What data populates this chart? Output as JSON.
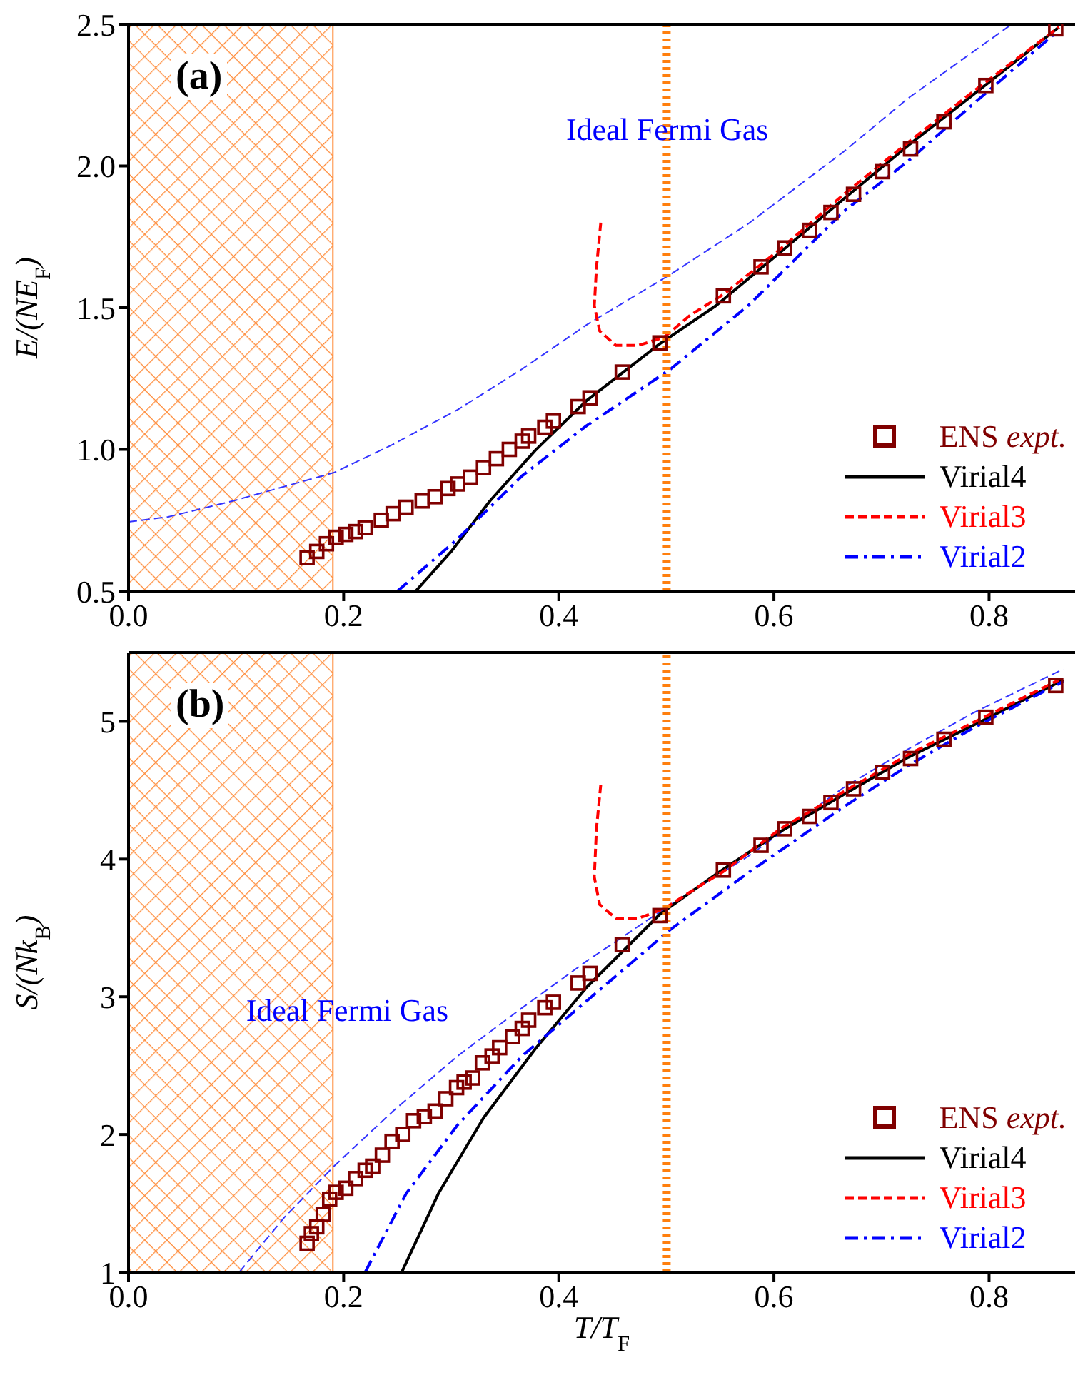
{
  "chart_data": [
    {
      "type": "line",
      "title": "(a)",
      "ylabel": "E/(NE$_{F}$)",
      "xlim": [
        0,
        0.88
      ],
      "ylim": [
        0.5,
        2.5
      ],
      "xticks": [
        {
          "value": 0,
          "label": "0.0"
        },
        {
          "value": 0.2,
          "label": "0.2"
        },
        {
          "value": 0.4,
          "label": "0.4"
        },
        {
          "value": 0.6,
          "label": "0.6"
        },
        {
          "value": 0.8,
          "label": "0.8"
        }
      ],
      "yticks": [
        {
          "value": 0.5,
          "label": "0.5"
        },
        {
          "value": 1,
          "label": "1.0"
        },
        {
          "value": 1.5,
          "label": "1.5"
        },
        {
          "value": 2,
          "label": "2.0"
        },
        {
          "value": 2.5,
          "label": "2.5"
        }
      ],
      "grid": false,
      "legend": "bottom right",
      "bands": [
        {
          "axis": "x",
          "from": 0,
          "to": 0.19,
          "color": "#ff8c3a"
        }
      ],
      "ref_lines": [
        {
          "axis": "x",
          "value": 0.5,
          "color": "#ff7f0e",
          "line_style": "dotted"
        }
      ],
      "annotations": [
        "Ideal Fermi Gas"
      ],
      "series": [
        {
          "type": "line",
          "color": "#3333ff",
          "line_style": "dashed",
          "marker": "none",
          "x": [
            0,
            0.037,
            0.097,
            0.191,
            0.246,
            0.306,
            0.366,
            0.426,
            0.504,
            0.576,
            0.665,
            0.725,
            0.821
          ],
          "values": [
            0.744,
            0.762,
            0.818,
            0.918,
            1.018,
            1.14,
            1.284,
            1.44,
            1.618,
            1.796,
            2.051,
            2.24,
            2.5
          ]
        },
        {
          "type": "scatter",
          "name": "ENS expt.",
          "color": "#800000",
          "marker": "square",
          "x": [
            0.166,
            0.175,
            0.184,
            0.193,
            0.202,
            0.211,
            0.22,
            0.235,
            0.246,
            0.258,
            0.273,
            0.285,
            0.297,
            0.306,
            0.318,
            0.33,
            0.342,
            0.354,
            0.366,
            0.372,
            0.387,
            0.395,
            0.418,
            0.429,
            0.459,
            0.494,
            0.553,
            0.588,
            0.61,
            0.633,
            0.653,
            0.674,
            0.701,
            0.727,
            0.758,
            0.797,
            0.862
          ],
          "values": [
            0.618,
            0.64,
            0.667,
            0.69,
            0.7,
            0.71,
            0.724,
            0.75,
            0.773,
            0.796,
            0.818,
            0.833,
            0.862,
            0.878,
            0.902,
            0.936,
            0.967,
            1.0,
            1.029,
            1.047,
            1.078,
            1.1,
            1.151,
            1.182,
            1.273,
            1.376,
            1.542,
            1.644,
            1.711,
            1.773,
            1.836,
            1.9,
            1.98,
            2.06,
            2.156,
            2.284,
            2.484
          ]
        },
        {
          "type": "line",
          "name": "Virial4",
          "color": "#000000",
          "line_style": "solid",
          "marker": "none",
          "x": [
            0.267,
            0.3,
            0.336,
            0.378,
            0.426,
            0.494,
            0.546,
            0.606,
            0.665,
            0.725,
            0.785,
            0.865
          ],
          "values": [
            0.5,
            0.64,
            0.818,
            0.996,
            1.173,
            1.373,
            1.507,
            1.696,
            1.884,
            2.073,
            2.251,
            2.49
          ]
        },
        {
          "type": "line",
          "name": "Virial3",
          "color": "#ff0000",
          "line_style": "dashed",
          "marker": "none",
          "x": [
            0.439,
            0.435,
            0.433,
            0.438,
            0.453,
            0.474,
            0.498,
            0.522,
            0.553,
            0.606,
            0.665,
            0.725,
            0.785,
            0.865
          ],
          "values": [
            1.8,
            1.64,
            1.507,
            1.418,
            1.367,
            1.367,
            1.396,
            1.473,
            1.547,
            1.707,
            1.9,
            2.084,
            2.262,
            2.49
          ]
        },
        {
          "type": "line",
          "name": "Virial2",
          "color": "#0000ff",
          "line_style": "dashdot",
          "marker": "none",
          "x": [
            0.25,
            0.306,
            0.366,
            0.426,
            0.504,
            0.576,
            0.665,
            0.725,
            0.785,
            0.863
          ],
          "values": [
            0.5,
            0.684,
            0.907,
            1.084,
            1.284,
            1.507,
            1.84,
            2.018,
            2.218,
            2.473
          ]
        }
      ]
    },
    {
      "type": "line",
      "title": "(b)",
      "xlabel": "T/T$_{F}$",
      "ylabel": "S/(Nk$_{B}$)",
      "xlim": [
        0,
        0.88
      ],
      "ylim": [
        1,
        5.5
      ],
      "xticks": [
        {
          "value": 0,
          "label": "0.0"
        },
        {
          "value": 0.2,
          "label": "0.2"
        },
        {
          "value": 0.4,
          "label": "0.4"
        },
        {
          "value": 0.6,
          "label": "0.6"
        },
        {
          "value": 0.8,
          "label": "0.8"
        }
      ],
      "yticks": [
        1,
        2,
        3,
        4,
        5
      ],
      "grid": false,
      "legend": "bottom right",
      "bands": [
        {
          "axis": "x",
          "from": 0,
          "to": 0.19,
          "color": "#ff8c3a"
        }
      ],
      "ref_lines": [
        {
          "axis": "x",
          "value": 0.5,
          "color": "#ff7f0e",
          "line_style": "dotted"
        }
      ],
      "annotations": [
        "Ideal Fermi Gas"
      ],
      "series": [
        {
          "type": "line",
          "color": "#3333ff",
          "line_style": "dashed",
          "marker": "none",
          "x": [
            0.103,
            0.145,
            0.191,
            0.246,
            0.306,
            0.366,
            0.426,
            0.504,
            0.576,
            0.665,
            0.725,
            0.785,
            0.869
          ],
          "values": [
            1.0,
            1.4,
            1.77,
            2.17,
            2.57,
            2.92,
            3.26,
            3.67,
            4.02,
            4.52,
            4.8,
            5.06,
            5.38
          ]
        },
        {
          "type": "scatter",
          "name": "ENS expt.",
          "color": "#800000",
          "marker": "square",
          "x": [
            0.166,
            0.17,
            0.175,
            0.181,
            0.187,
            0.193,
            0.202,
            0.211,
            0.22,
            0.227,
            0.236,
            0.245,
            0.255,
            0.265,
            0.275,
            0.285,
            0.295,
            0.305,
            0.312,
            0.32,
            0.329,
            0.338,
            0.345,
            0.357,
            0.366,
            0.372,
            0.387,
            0.395,
            0.418,
            0.429,
            0.459,
            0.494,
            0.553,
            0.588,
            0.61,
            0.633,
            0.653,
            0.674,
            0.701,
            0.727,
            0.758,
            0.797,
            0.862
          ],
          "values": [
            1.21,
            1.28,
            1.33,
            1.42,
            1.53,
            1.58,
            1.61,
            1.68,
            1.74,
            1.77,
            1.85,
            1.95,
            2.0,
            2.1,
            2.13,
            2.17,
            2.26,
            2.34,
            2.38,
            2.41,
            2.52,
            2.57,
            2.63,
            2.71,
            2.77,
            2.83,
            2.92,
            2.96,
            3.1,
            3.17,
            3.38,
            3.59,
            3.92,
            4.1,
            4.22,
            4.31,
            4.41,
            4.51,
            4.63,
            4.73,
            4.87,
            5.03,
            5.26
          ]
        },
        {
          "type": "line",
          "name": "Virial4",
          "color": "#000000",
          "line_style": "solid",
          "marker": "none",
          "x": [
            0.254,
            0.288,
            0.33,
            0.378,
            0.426,
            0.494,
            0.546,
            0.606,
            0.665,
            0.725,
            0.785,
            0.869
          ],
          "values": [
            1.0,
            1.57,
            2.12,
            2.62,
            3.07,
            3.6,
            3.89,
            4.2,
            4.47,
            4.74,
            4.97,
            5.3
          ]
        },
        {
          "type": "line",
          "name": "Virial3",
          "color": "#ff0000",
          "line_style": "dashed",
          "marker": "none",
          "x": [
            0.439,
            0.435,
            0.433,
            0.438,
            0.453,
            0.474,
            0.498,
            0.528,
            0.553,
            0.606,
            0.665,
            0.725,
            0.785,
            0.865
          ],
          "values": [
            4.54,
            4.22,
            3.87,
            3.67,
            3.57,
            3.57,
            3.64,
            3.79,
            3.91,
            4.22,
            4.49,
            4.76,
            4.99,
            5.3
          ]
        },
        {
          "type": "line",
          "name": "Virial2",
          "color": "#0000ff",
          "line_style": "dashdot",
          "marker": "none",
          "x": [
            0.22,
            0.258,
            0.306,
            0.366,
            0.426,
            0.504,
            0.576,
            0.665,
            0.725,
            0.785,
            0.869
          ],
          "values": [
            1.0,
            1.57,
            2.07,
            2.57,
            2.97,
            3.49,
            3.9,
            4.38,
            4.68,
            4.95,
            5.29
          ]
        }
      ]
    }
  ]
}
